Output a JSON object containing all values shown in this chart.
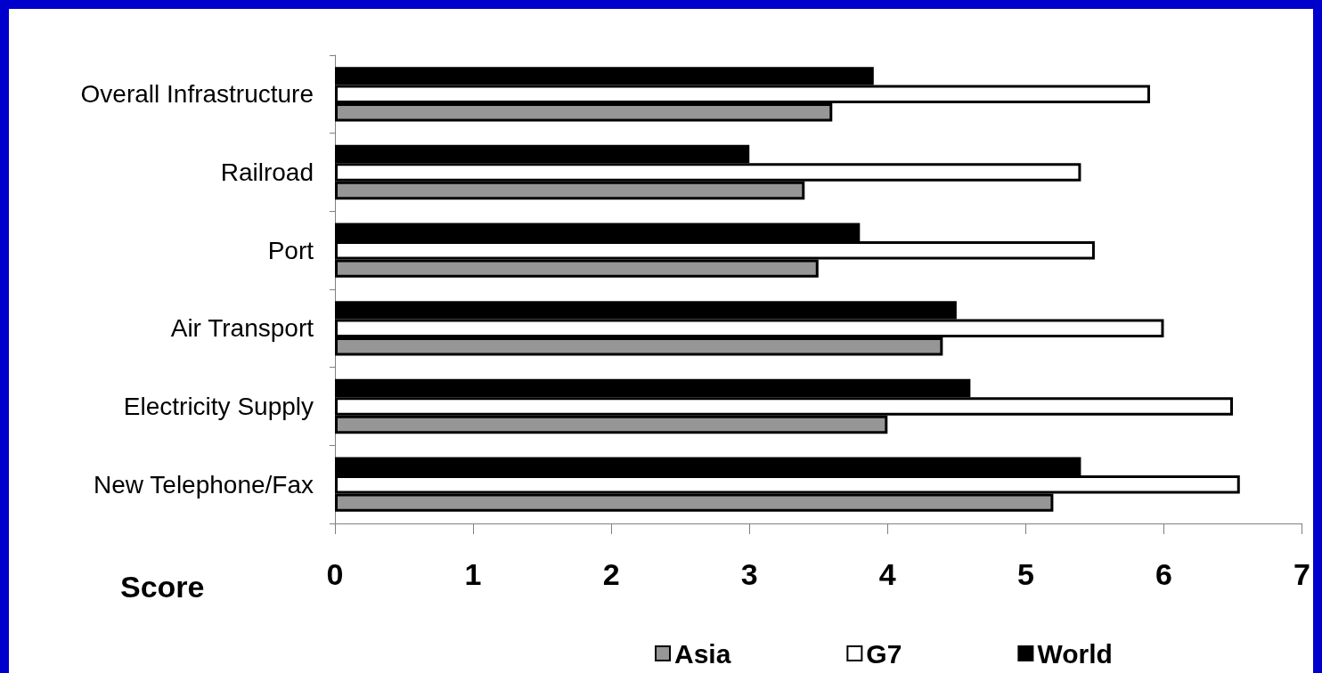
{
  "chart_data": {
    "type": "bar",
    "orientation": "horizontal",
    "xlabel": "Score",
    "categories": [
      "Overall Infrastructure",
      "Railroad",
      "Port",
      "Air Transport",
      "Electricity Supply",
      "New Telephone/Fax"
    ],
    "series": [
      {
        "name": "Asia",
        "color": "#969696",
        "values": [
          3.6,
          3.4,
          3.5,
          4.4,
          4.0,
          5.2
        ]
      },
      {
        "name": "G7",
        "color": "#ffffff",
        "values": [
          5.9,
          5.4,
          5.5,
          6.0,
          6.5,
          6.55
        ]
      },
      {
        "name": "World",
        "color": "#000000",
        "values": [
          3.9,
          3.0,
          3.8,
          4.5,
          4.6,
          5.4
        ]
      }
    ],
    "xlim": [
      0,
      7
    ],
    "xticks": [
      0,
      1,
      2,
      3,
      4,
      5,
      6,
      7
    ],
    "grid": false,
    "legend": "bottom"
  }
}
